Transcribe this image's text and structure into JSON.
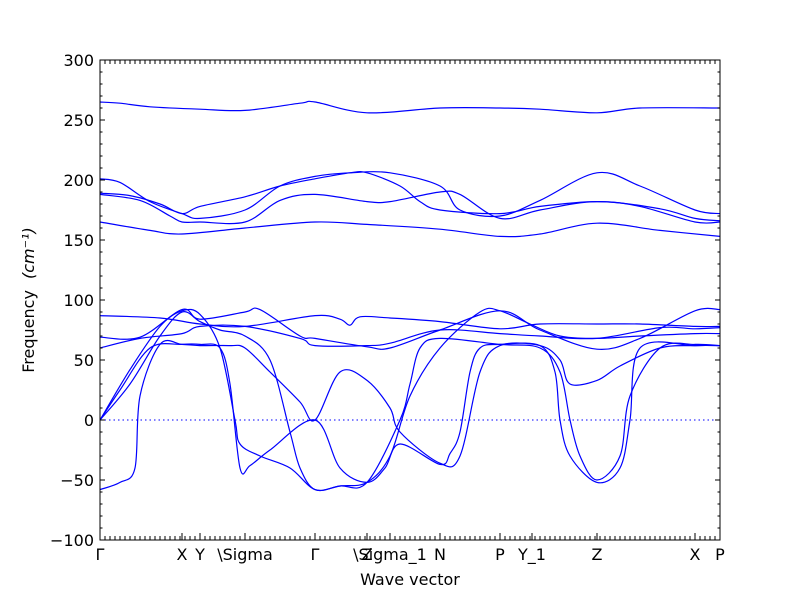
{
  "chart_data": {
    "type": "line",
    "xlabel": "Wave vector",
    "ylabel": "Frequency",
    "ylabel_unit": "(cm⁻¹)",
    "ylim": [
      -100,
      300
    ],
    "xlim": [
      0,
      620
    ],
    "yticks": [
      -100,
      -50,
      0,
      50,
      100,
      150,
      200,
      250,
      300
    ],
    "ytick_labels": [
      "−100",
      "−50",
      "0",
      "50",
      "100",
      "150",
      "200",
      "250",
      "300"
    ],
    "grid": false,
    "legend": "none",
    "color": "#0000ff",
    "kpoints": [
      {
        "label": "Γ",
        "x": 0
      },
      {
        "label": "X",
        "x": 82
      },
      {
        "label": "Y",
        "x": 100
      },
      {
        "label": "\\Sigma",
        "x": 145
      },
      {
        "label": "Γ",
        "x": 215
      },
      {
        "label": "Z",
        "x": 267
      },
      {
        "label": "\\Sigma_1",
        "x": 290
      },
      {
        "label": "N",
        "x": 340
      },
      {
        "label": "P",
        "x": 400
      },
      {
        "label": "Y_1",
        "x": 432
      },
      {
        "label": "Z",
        "x": 497
      },
      {
        "label": "X",
        "x": 595
      },
      {
        "label": "P",
        "x": 620
      }
    ],
    "series": [
      {
        "values": [
          [
            0,
            265
          ],
          [
            20,
            264
          ],
          [
            50,
            261
          ],
          [
            100,
            259
          ],
          [
            145,
            258
          ],
          [
            200,
            264
          ],
          [
            215,
            265
          ],
          [
            267,
            256
          ],
          [
            340,
            260
          ],
          [
            400,
            260
          ],
          [
            440,
            259
          ],
          [
            497,
            256
          ],
          [
            540,
            260
          ],
          [
            620,
            260
          ]
        ]
      },
      {
        "values": [
          [
            0,
            201
          ],
          [
            20,
            198
          ],
          [
            50,
            182
          ],
          [
            82,
            172
          ],
          [
            100,
            168
          ],
          [
            145,
            175
          ],
          [
            180,
            195
          ],
          [
            215,
            203
          ],
          [
            250,
            206
          ],
          [
            290,
            206
          ],
          [
            340,
            195
          ],
          [
            360,
            175
          ],
          [
            400,
            170
          ],
          [
            440,
            183
          ],
          [
            497,
            206
          ],
          [
            540,
            195
          ],
          [
            595,
            175
          ],
          [
            620,
            172
          ]
        ]
      },
      {
        "values": [
          [
            0,
            189
          ],
          [
            30,
            187
          ],
          [
            60,
            180
          ],
          [
            82,
            172
          ],
          [
            100,
            178
          ],
          [
            145,
            186
          ],
          [
            180,
            195
          ],
          [
            215,
            201
          ],
          [
            250,
            206
          ],
          [
            267,
            206
          ],
          [
            300,
            195
          ],
          [
            320,
            182
          ],
          [
            340,
            175
          ],
          [
            400,
            172
          ],
          [
            440,
            178
          ],
          [
            497,
            182
          ],
          [
            540,
            178
          ],
          [
            595,
            165
          ],
          [
            620,
            165
          ]
        ]
      },
      {
        "values": [
          [
            0,
            188
          ],
          [
            40,
            183
          ],
          [
            70,
            170
          ],
          [
            82,
            165
          ],
          [
            100,
            165
          ],
          [
            145,
            165
          ],
          [
            180,
            183
          ],
          [
            215,
            188
          ],
          [
            267,
            182
          ],
          [
            290,
            182
          ],
          [
            340,
            190
          ],
          [
            360,
            188
          ],
          [
            400,
            168
          ],
          [
            440,
            175
          ],
          [
            497,
            182
          ],
          [
            560,
            176
          ],
          [
            595,
            168
          ],
          [
            620,
            166
          ]
        ]
      },
      {
        "values": [
          [
            0,
            165
          ],
          [
            50,
            158
          ],
          [
            82,
            155
          ],
          [
            145,
            160
          ],
          [
            215,
            165
          ],
          [
            267,
            163
          ],
          [
            340,
            159
          ],
          [
            400,
            153
          ],
          [
            440,
            155
          ],
          [
            497,
            164
          ],
          [
            560,
            158
          ],
          [
            620,
            153
          ]
        ]
      },
      {
        "values": [
          [
            0,
            87
          ],
          [
            60,
            85
          ],
          [
            100,
            80
          ],
          [
            145,
            78
          ],
          [
            215,
            87
          ],
          [
            240,
            84
          ],
          [
            250,
            79
          ],
          [
            260,
            86
          ],
          [
            290,
            85
          ],
          [
            340,
            82
          ],
          [
            400,
            76
          ],
          [
            440,
            80
          ],
          [
            497,
            80
          ],
          [
            540,
            80
          ],
          [
            595,
            78
          ],
          [
            620,
            78
          ]
        ]
      },
      {
        "values": [
          [
            0,
            69
          ],
          [
            40,
            69
          ],
          [
            82,
            92
          ],
          [
            100,
            84
          ],
          [
            145,
            90
          ],
          [
            160,
            92
          ],
          [
            200,
            70
          ],
          [
            215,
            68
          ],
          [
            267,
            61
          ],
          [
            290,
            60
          ],
          [
            340,
            75
          ],
          [
            400,
            91
          ],
          [
            440,
            75
          ],
          [
            497,
            59
          ],
          [
            540,
            68
          ],
          [
            595,
            91
          ],
          [
            620,
            92
          ]
        ]
      },
      {
        "values": [
          [
            0,
            60
          ],
          [
            40,
            68
          ],
          [
            82,
            72
          ],
          [
            100,
            78
          ],
          [
            145,
            78
          ],
          [
            200,
            68
          ],
          [
            215,
            62
          ],
          [
            267,
            62
          ],
          [
            290,
            64
          ],
          [
            340,
            75
          ],
          [
            400,
            72
          ],
          [
            440,
            70
          ],
          [
            497,
            68
          ],
          [
            560,
            77
          ],
          [
            595,
            76
          ],
          [
            620,
            77
          ]
        ]
      },
      {
        "values": [
          [
            0,
            0
          ],
          [
            20,
            25
          ],
          [
            50,
            60
          ],
          [
            82,
            63
          ],
          [
            100,
            63
          ],
          [
            120,
            60
          ],
          [
            130,
            30
          ],
          [
            140,
            -40
          ],
          [
            150,
            -38
          ],
          [
            170,
            -25
          ],
          [
            215,
            0
          ],
          [
            240,
            -40
          ],
          [
            267,
            -52
          ],
          [
            285,
            -40
          ],
          [
            300,
            -20
          ],
          [
            340,
            -37
          ],
          [
            350,
            -28
          ],
          [
            360,
            -10
          ],
          [
            370,
            40
          ],
          [
            380,
            60
          ],
          [
            400,
            63
          ],
          [
            440,
            62
          ],
          [
            455,
            40
          ],
          [
            460,
            0
          ],
          [
            470,
            -30
          ],
          [
            497,
            -52
          ],
          [
            520,
            -40
          ],
          [
            530,
            0
          ],
          [
            540,
            60
          ],
          [
            595,
            62
          ],
          [
            620,
            62
          ]
        ]
      },
      {
        "values": [
          [
            0,
            0
          ],
          [
            30,
            42
          ],
          [
            60,
            78
          ],
          [
            82,
            91
          ],
          [
            100,
            88
          ],
          [
            120,
            60
          ],
          [
            135,
            0
          ],
          [
            140,
            -20
          ],
          [
            160,
            -30
          ],
          [
            190,
            -40
          ],
          [
            215,
            -58
          ],
          [
            240,
            -55
          ],
          [
            267,
            -52
          ],
          [
            300,
            0
          ],
          [
            310,
            30
          ],
          [
            320,
            60
          ],
          [
            340,
            68
          ],
          [
            400,
            63
          ],
          [
            440,
            60
          ],
          [
            460,
            40
          ],
          [
            470,
            0
          ],
          [
            480,
            -30
          ],
          [
            497,
            -50
          ],
          [
            520,
            -30
          ],
          [
            530,
            20
          ],
          [
            560,
            60
          ],
          [
            595,
            63
          ],
          [
            620,
            62
          ]
        ]
      },
      {
        "values": [
          [
            0,
            -58
          ],
          [
            20,
            -52
          ],
          [
            35,
            -40
          ],
          [
            40,
            20
          ],
          [
            60,
            63
          ],
          [
            82,
            63
          ],
          [
            100,
            62
          ],
          [
            130,
            62
          ],
          [
            145,
            60
          ],
          [
            170,
            40
          ],
          [
            200,
            15
          ],
          [
            215,
            0
          ],
          [
            240,
            40
          ],
          [
            267,
            33
          ],
          [
            290,
            10
          ],
          [
            300,
            -10
          ],
          [
            340,
            -36
          ],
          [
            360,
            -30
          ],
          [
            380,
            40
          ],
          [
            400,
            62
          ],
          [
            440,
            62
          ],
          [
            460,
            50
          ],
          [
            470,
            30
          ],
          [
            497,
            33
          ],
          [
            520,
            45
          ],
          [
            560,
            60
          ],
          [
            595,
            62
          ],
          [
            620,
            62
          ]
        ]
      },
      {
        "values": [
          [
            0,
            0
          ],
          [
            30,
            30
          ],
          [
            60,
            70
          ],
          [
            82,
            90
          ],
          [
            100,
            82
          ],
          [
            120,
            75
          ],
          [
            145,
            70
          ],
          [
            170,
            50
          ],
          [
            190,
            -10
          ],
          [
            200,
            -40
          ],
          [
            215,
            -58
          ],
          [
            240,
            -55
          ],
          [
            267,
            -52
          ],
          [
            290,
            -30
          ],
          [
            310,
            20
          ],
          [
            340,
            60
          ],
          [
            380,
            90
          ],
          [
            400,
            91
          ],
          [
            430,
            80
          ],
          [
            460,
            70
          ],
          [
            497,
            68
          ],
          [
            540,
            70
          ],
          [
            595,
            72
          ],
          [
            620,
            72
          ]
        ]
      }
    ]
  }
}
